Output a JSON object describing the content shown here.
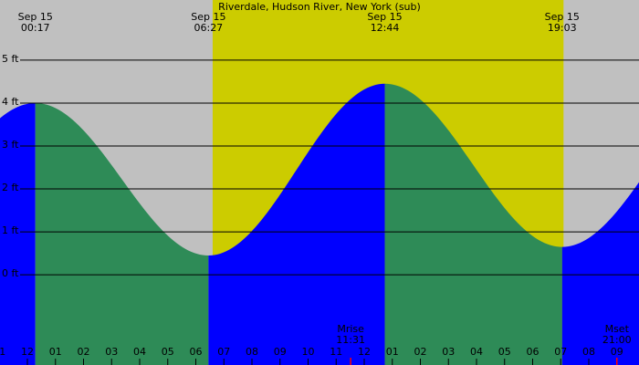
{
  "chart_data": {
    "type": "area",
    "title": "Riverdale, Hudson River, New York (sub)",
    "extremes": [
      {
        "date": "Sep 15",
        "time": "00:17",
        "height": 4.0
      },
      {
        "date": "Sep 15",
        "time": "06:27",
        "height": 0.45
      },
      {
        "date": "Sep 15",
        "time": "12:44",
        "height": 4.45
      },
      {
        "date": "Sep 15",
        "time": "19:03",
        "height": 0.65
      }
    ],
    "daylight": [
      6.6,
      19.1
    ],
    "moon": [
      {
        "label": "Mrise",
        "time": "11:31"
      },
      {
        "label": "Mset",
        "time": "21:00"
      }
    ],
    "rising_color": "#0000ff",
    "falling_color": "#2e8b57",
    "night_color": "#c0c0c0",
    "day_color": "#cccc00",
    "ylim": [
      -2.1,
      6.4
    ],
    "yticks": [
      {
        "value": 0,
        "label": "0 ft"
      },
      {
        "value": 1,
        "label": "1 ft"
      },
      {
        "value": 2,
        "label": "2 ft"
      },
      {
        "value": 3,
        "label": "3 ft"
      },
      {
        "value": 4,
        "label": "4 ft"
      },
      {
        "value": 5,
        "label": "5 ft"
      }
    ],
    "xlim": [
      -0.976,
      21.789
    ],
    "xticks": [
      {
        "value": -1,
        "label": "11"
      },
      {
        "value": 0,
        "label": "12"
      },
      {
        "value": 1,
        "label": "01"
      },
      {
        "value": 2,
        "label": "02"
      },
      {
        "value": 3,
        "label": "03"
      },
      {
        "value": 4,
        "label": "04"
      },
      {
        "value": 5,
        "label": "05"
      },
      {
        "value": 6,
        "label": "06"
      },
      {
        "value": 7,
        "label": "07"
      },
      {
        "value": 8,
        "label": "08"
      },
      {
        "value": 9,
        "label": "09"
      },
      {
        "value": 10,
        "label": "10"
      },
      {
        "value": 11,
        "label": "11"
      },
      {
        "value": 12,
        "label": "12"
      },
      {
        "value": 13,
        "label": "01"
      },
      {
        "value": 14,
        "label": "02"
      },
      {
        "value": 15,
        "label": "03"
      },
      {
        "value": 16,
        "label": "04"
      },
      {
        "value": 17,
        "label": "05"
      },
      {
        "value": 18,
        "label": "06"
      },
      {
        "value": 19,
        "label": "07"
      },
      {
        "value": 20,
        "label": "08"
      },
      {
        "value": 21,
        "label": "09"
      }
    ],
    "grid": true
  }
}
